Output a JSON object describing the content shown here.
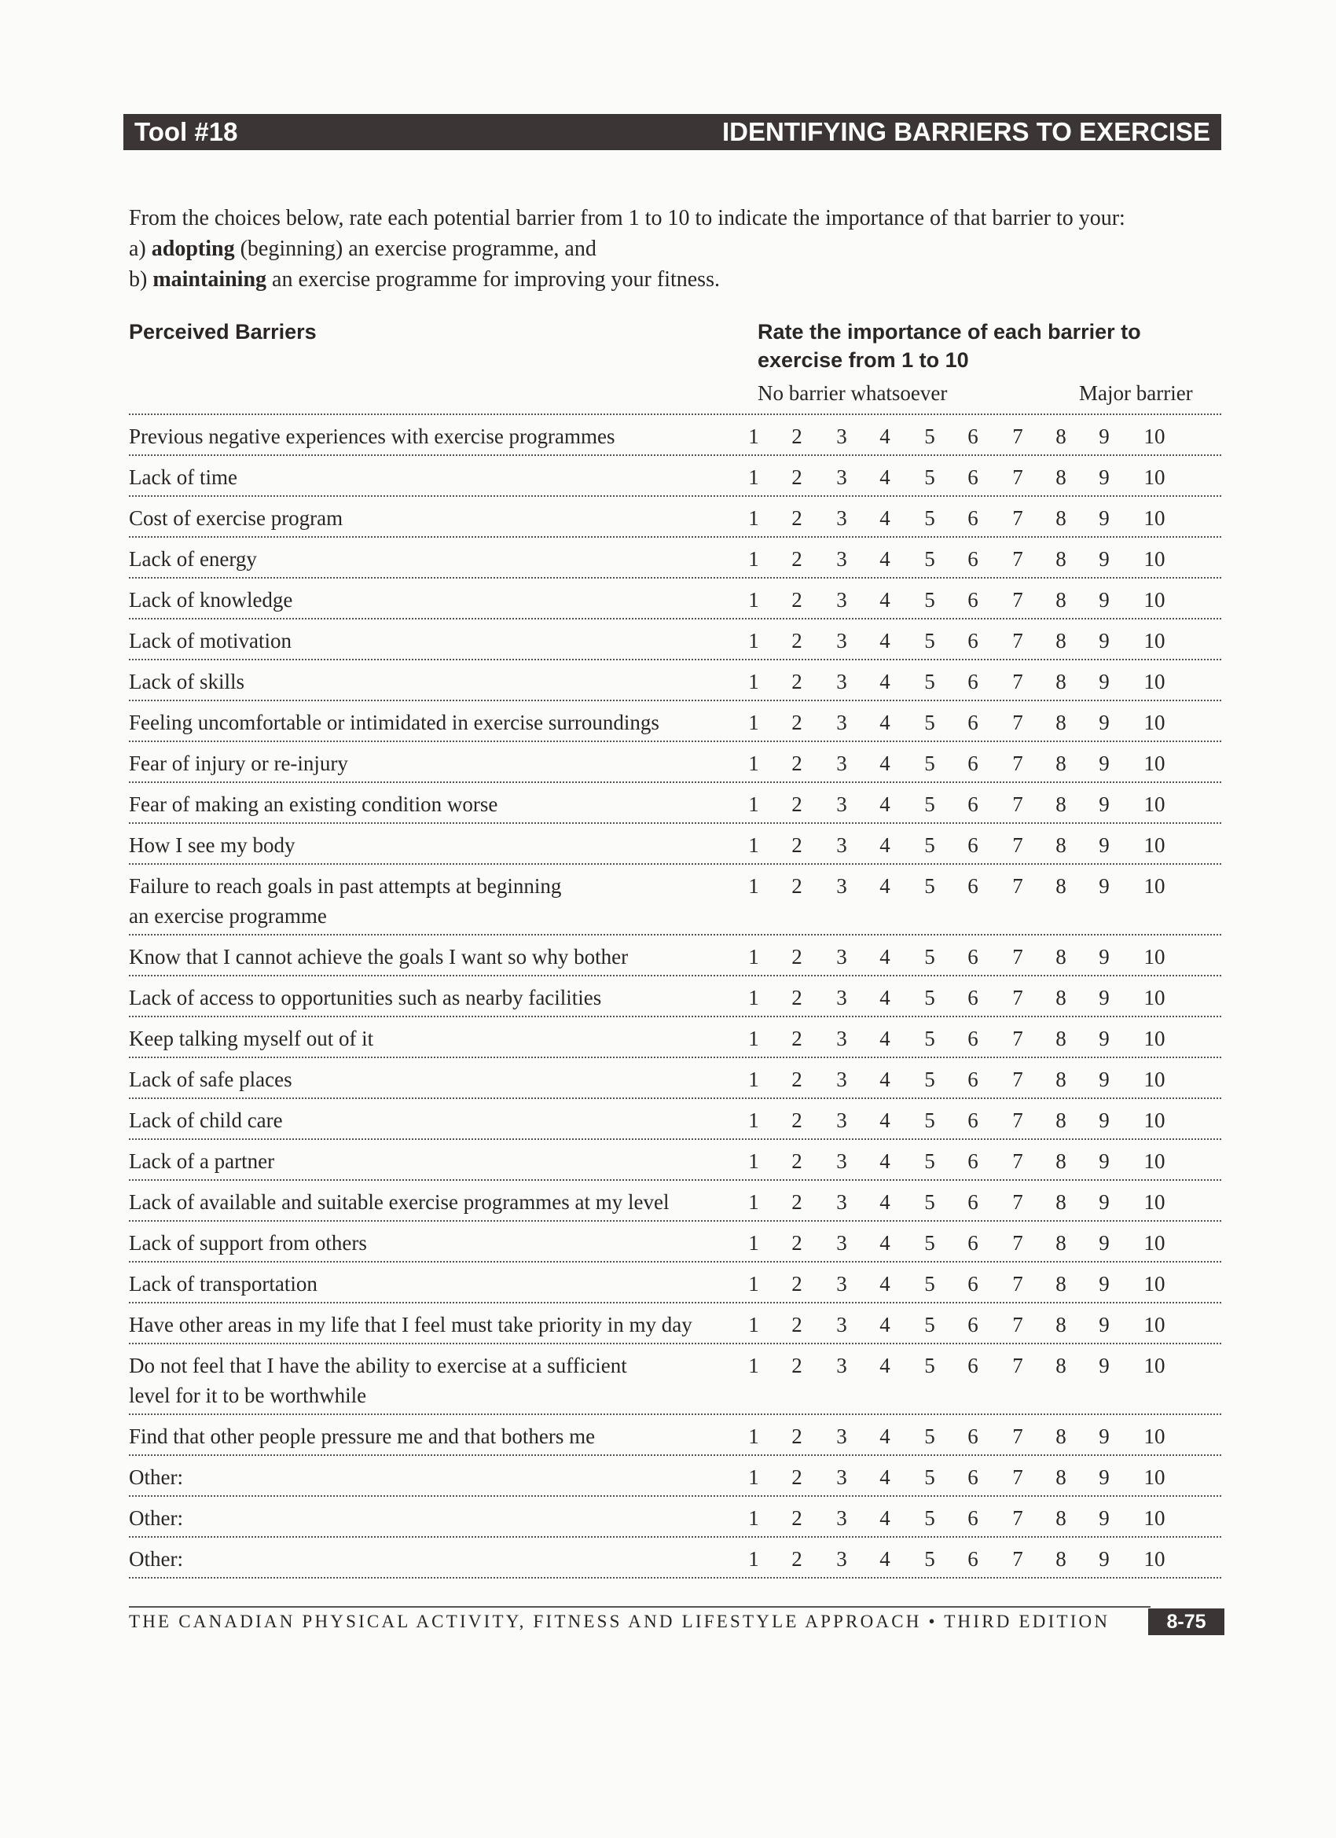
{
  "header": {
    "tool": "Tool #18",
    "title": "IDENTIFYING BARRIERS TO EXERCISE"
  },
  "intro": {
    "line1": "From the choices below, rate each potential barrier from 1 to 10 to indicate the importance of that barrier to your:",
    "a_prefix": "a) ",
    "a_bold": "adopting",
    "a_rest": " (beginning) an exercise programme, and",
    "b_prefix": "b) ",
    "b_bold": "maintaining",
    "b_rest": " an exercise programme for improving your fitness."
  },
  "columns": {
    "barriers": "Perceived Barriers",
    "rate_line1": "Rate the importance of each barrier to",
    "rate_line2": "exercise from 1 to 10",
    "scale_low": "No barrier whatsoever",
    "scale_high": "Major barrier"
  },
  "scale": [
    "1",
    "2",
    "3",
    "4",
    "5",
    "6",
    "7",
    "8",
    "9",
    "10"
  ],
  "barriers": [
    [
      "Previous negative experiences with exercise programmes"
    ],
    [
      "Lack of time"
    ],
    [
      "Cost of exercise program"
    ],
    [
      "Lack of energy"
    ],
    [
      "Lack of knowledge"
    ],
    [
      "Lack of motivation"
    ],
    [
      "Lack of skills"
    ],
    [
      "Feeling uncomfortable or intimidated in exercise surroundings"
    ],
    [
      "Fear of injury or re-injury"
    ],
    [
      "Fear of making an existing condition worse"
    ],
    [
      "How I see my body"
    ],
    [
      "Failure to reach goals in past attempts at beginning",
      "an exercise programme"
    ],
    [
      "Know that I cannot achieve the goals I want so why bother"
    ],
    [
      "Lack of access to opportunities such as nearby facilities"
    ],
    [
      "Keep talking myself out of it"
    ],
    [
      "Lack of safe places"
    ],
    [
      "Lack of child care"
    ],
    [
      "Lack of a partner"
    ],
    [
      "Lack of available and suitable exercise programmes at my level"
    ],
    [
      "Lack of support from others"
    ],
    [
      "Lack of transportation"
    ],
    [
      "Have other areas in my life that I feel must take priority in my day"
    ],
    [
      "Do not feel that I have the ability to exercise at a sufficient",
      "level for it to be worthwhile"
    ],
    [
      "Find that other people pressure me and that bothers me"
    ],
    [
      "Other:"
    ],
    [
      "Other:"
    ],
    [
      "Other:"
    ]
  ],
  "footer": {
    "book": "THE CANADIAN PHYSICAL ACTIVITY, FITNESS AND LIFESTYLE APPROACH • THIRD EDITION",
    "page": "8-75"
  }
}
